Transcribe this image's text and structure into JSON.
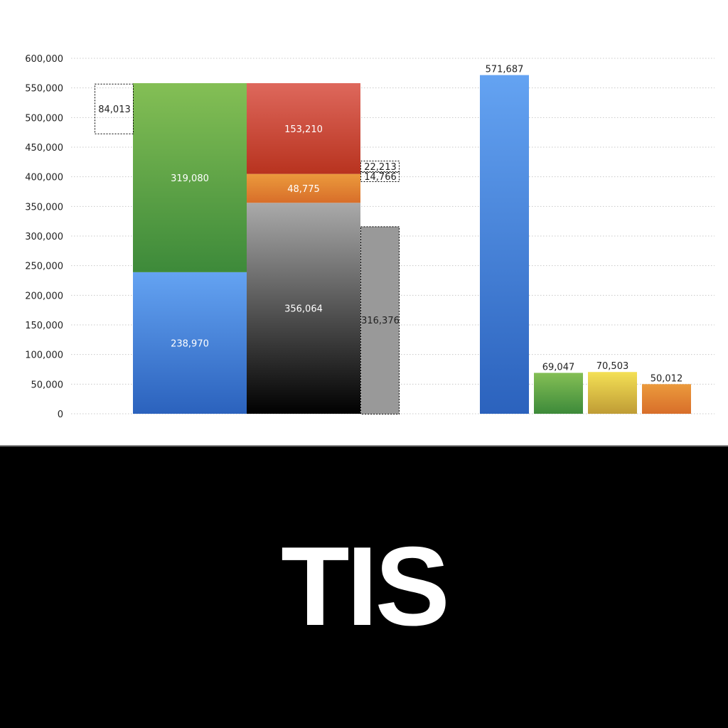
{
  "chart_data": {
    "type": "bar",
    "ylim": [
      0,
      600000
    ],
    "yticks": [
      "0",
      "50,000",
      "100,000",
      "150,000",
      "200,000",
      "250,000",
      "300,000",
      "350,000",
      "400,000",
      "450,000",
      "500,000",
      "550,000",
      "600,000"
    ],
    "grid": true,
    "stacked_columns": [
      {
        "segments": [
          {
            "value": 238970,
            "label": "238,970",
            "color": "#3f7fd8"
          },
          {
            "value": 319080,
            "label": "319,080",
            "color": "#56a043"
          }
        ]
      },
      {
        "segments": [
          {
            "value": 356064,
            "label": "356,064",
            "color": "#444444"
          },
          {
            "value": 48775,
            "label": "48,775",
            "color": "#e0802e"
          },
          {
            "value": 153210,
            "label": "153,210",
            "color": "#cc4433"
          }
        ]
      }
    ],
    "dashed_boxes": [
      {
        "value": 84013,
        "label": "84,013",
        "top": 557050
      },
      {
        "value": 316376,
        "label": "316,376",
        "top": 316376
      },
      {
        "value": 22213,
        "label": "22,213"
      },
      {
        "value": 14766,
        "label": "14,766"
      }
    ],
    "bars": [
      {
        "value": 571687,
        "label": "571,687",
        "color": "#3f7fd8"
      },
      {
        "value": 69047,
        "label": "69,047",
        "color": "#56a043"
      },
      {
        "value": 70503,
        "label": "70,503",
        "color": "#e0c040"
      },
      {
        "value": 50012,
        "label": "50,012",
        "color": "#e0802e"
      }
    ]
  },
  "caption": "TIS"
}
